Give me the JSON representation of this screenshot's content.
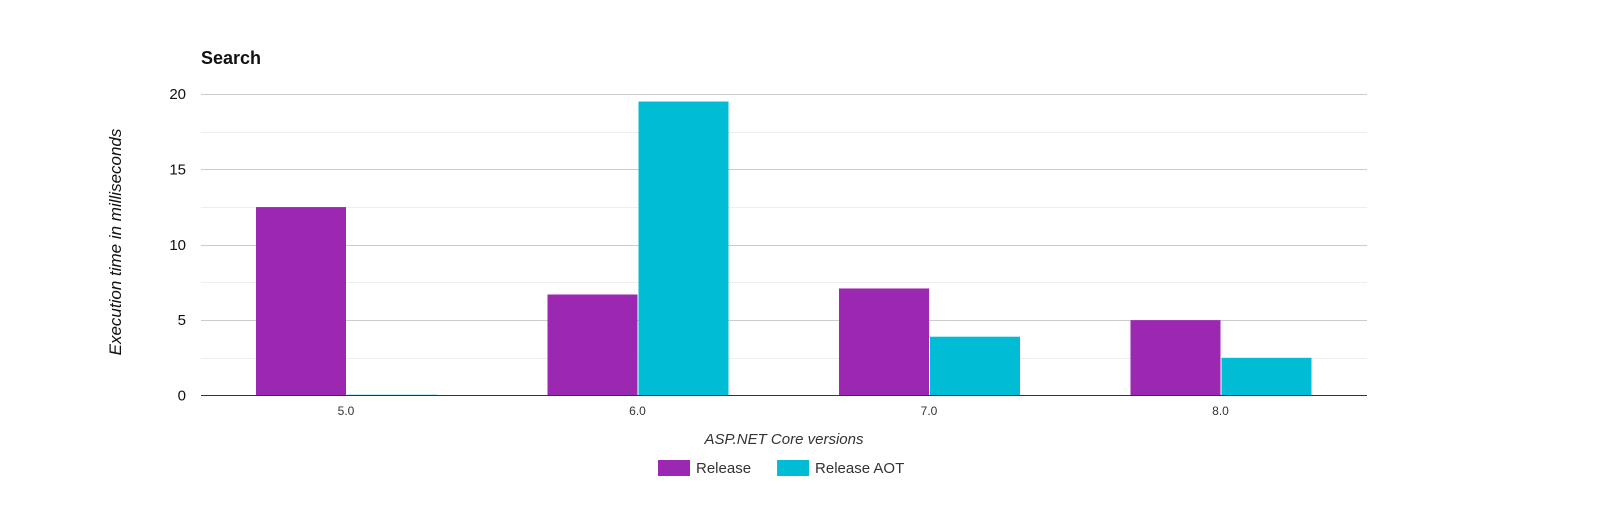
{
  "chart_data": {
    "type": "bar",
    "title": "Search",
    "xlabel": "ASP.NET Core versions",
    "ylabel": "Execution time in milliseconds",
    "categories": [
      "5.0",
      "6.0",
      "7.0",
      "8.0"
    ],
    "series": [
      {
        "name": "Release",
        "color": "#9c27b0",
        "values": [
          12.5,
          6.7,
          7.1,
          5.0
        ]
      },
      {
        "name": "Release AOT",
        "color": "#00bcd4",
        "values": [
          0.05,
          19.5,
          3.9,
          2.5
        ]
      }
    ],
    "ylim": [
      0,
      20
    ],
    "yticks": [
      "0",
      "5",
      "10",
      "15",
      "20"
    ],
    "grid": true,
    "legend": "bottom"
  }
}
